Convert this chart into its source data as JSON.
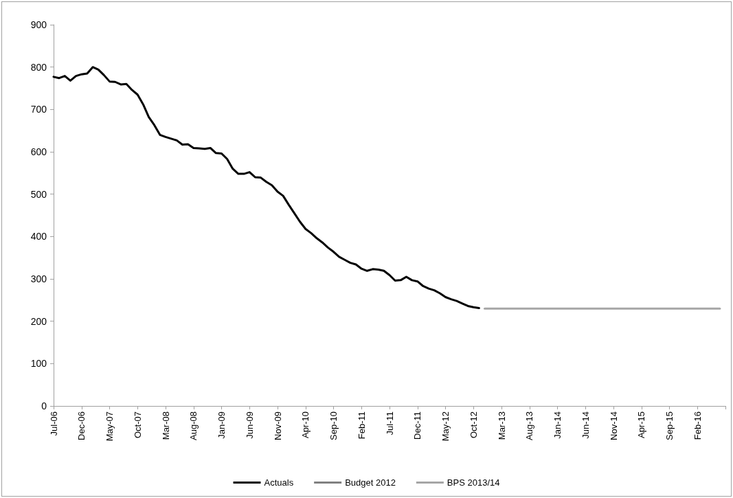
{
  "chart_data": {
    "type": "line",
    "categories": [
      "Jul-06",
      null,
      null,
      null,
      null,
      "Dec-06",
      null,
      null,
      null,
      null,
      "May-07",
      null,
      null,
      null,
      null,
      "Oct-07",
      null,
      null,
      null,
      null,
      "Mar-08",
      null,
      null,
      null,
      null,
      "Aug-08",
      null,
      null,
      null,
      null,
      "Jan-09",
      null,
      null,
      null,
      null,
      "Jun-09",
      null,
      null,
      null,
      null,
      "Nov-09",
      null,
      null,
      null,
      null,
      "Apr-10",
      null,
      null,
      null,
      null,
      "Sep-10",
      null,
      null,
      null,
      null,
      "Feb-11",
      null,
      null,
      null,
      null,
      "Jul-11",
      null,
      null,
      null,
      null,
      "Dec-11",
      null,
      null,
      null,
      null,
      "May-12",
      null,
      null,
      null,
      null,
      "Oct-12",
      null,
      null,
      null,
      null,
      "Mar-13",
      null,
      null,
      null,
      null,
      "Aug-13",
      null,
      null,
      null,
      null,
      "Jan-14",
      null,
      null,
      null,
      null,
      "Jun-14",
      null,
      null,
      null,
      null,
      "Nov-14",
      null,
      null,
      null,
      null,
      "Apr-15",
      null,
      null,
      null,
      null,
      "Sep-15",
      null,
      null,
      null,
      null,
      "Feb-16",
      null,
      null,
      null,
      null,
      null
    ],
    "series": [
      {
        "name": "Actuals",
        "color": "#000000",
        "values": [
          777,
          774,
          779,
          768,
          779,
          783,
          785,
          800,
          794,
          781,
          766,
          765,
          759,
          760,
          746,
          735,
          712,
          682,
          663,
          640,
          635,
          631,
          627,
          617,
          618,
          609,
          608,
          607,
          609,
          597,
          596,
          583,
          560,
          548,
          548,
          552,
          540,
          539,
          529,
          521,
          506,
          496,
          475,
          455,
          435,
          418,
          408,
          396,
          386,
          374,
          364,
          352,
          345,
          338,
          334,
          324,
          319,
          323,
          322,
          319,
          309,
          296,
          297,
          305,
          297,
          294,
          283,
          277,
          273,
          266,
          257,
          252,
          248,
          242,
          236,
          233,
          231,
          null,
          null,
          null,
          null,
          null,
          null,
          null,
          null,
          null,
          null,
          null,
          null,
          null,
          null,
          null,
          null,
          null,
          null,
          null,
          null,
          null,
          null,
          null,
          null,
          null,
          null,
          null,
          null,
          null,
          null,
          null,
          null,
          null,
          null,
          null,
          null,
          null,
          null,
          null,
          null,
          null,
          null,
          null,
          null
        ]
      },
      {
        "name": "Budget 2012",
        "color": "#808080",
        "values": [
          null,
          null,
          null,
          null,
          null,
          null,
          null,
          null,
          null,
          null,
          null,
          null,
          null,
          null,
          null,
          null,
          null,
          null,
          null,
          null,
          null,
          null,
          null,
          null,
          null,
          null,
          null,
          null,
          null,
          null,
          null,
          null,
          null,
          null,
          null,
          null,
          null,
          null,
          null,
          null,
          null,
          null,
          null,
          null,
          null,
          null,
          null,
          null,
          null,
          null,
          null,
          null,
          null,
          null,
          null,
          null,
          null,
          null,
          null,
          null,
          null,
          null,
          null,
          null,
          null,
          null,
          null,
          null,
          null,
          null,
          null,
          null,
          null,
          null,
          null,
          null,
          null,
          null,
          null,
          null,
          null,
          null,
          null,
          null,
          null,
          null,
          null,
          null,
          null,
          null,
          null,
          null,
          null,
          null,
          null,
          null,
          null,
          null,
          null,
          null,
          null,
          null,
          null,
          null,
          null,
          null,
          null,
          null,
          null,
          null,
          null,
          null,
          null,
          null,
          null,
          null,
          null,
          null,
          null,
          null,
          null
        ]
      },
      {
        "name": "BPS 2013/14",
        "color": "#a6a6a6",
        "values": [
          null,
          null,
          null,
          null,
          null,
          null,
          null,
          null,
          null,
          null,
          null,
          null,
          null,
          null,
          null,
          null,
          null,
          null,
          null,
          null,
          null,
          null,
          null,
          null,
          null,
          null,
          null,
          null,
          null,
          null,
          null,
          null,
          null,
          null,
          null,
          null,
          null,
          null,
          null,
          null,
          null,
          null,
          null,
          null,
          null,
          null,
          null,
          null,
          null,
          null,
          null,
          null,
          null,
          null,
          null,
          null,
          null,
          null,
          null,
          null,
          null,
          null,
          null,
          null,
          null,
          null,
          null,
          null,
          null,
          null,
          null,
          null,
          null,
          null,
          null,
          null,
          null,
          230,
          230,
          230,
          230,
          230,
          230,
          230,
          230,
          230,
          230,
          230,
          230,
          230,
          230,
          230,
          230,
          230,
          230,
          230,
          230,
          230,
          230,
          230,
          230,
          230,
          230,
          230,
          230,
          230,
          230,
          230,
          230,
          230,
          230,
          230,
          230,
          230,
          230,
          230,
          230,
          230,
          230,
          230,
          null
        ]
      }
    ],
    "ylim": [
      0,
      900
    ],
    "yticks": [
      0,
      100,
      200,
      300,
      400,
      500,
      600,
      700,
      800,
      900
    ],
    "legend": "bottom",
    "marker": "none",
    "line_style": "solid"
  }
}
